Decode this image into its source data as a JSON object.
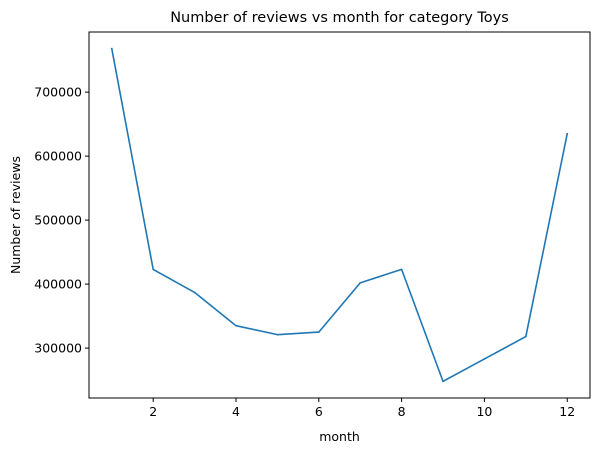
{
  "chart_data": {
    "type": "line",
    "title": "Number of reviews vs month for category Toys",
    "xlabel": "month",
    "ylabel": "Number of reviews",
    "x": [
      1,
      2,
      3,
      4,
      5,
      6,
      7,
      8,
      9,
      10,
      11,
      12
    ],
    "series": [
      {
        "color": "#1f77b4",
        "values": [
          768000,
          423000,
          387000,
          335000,
          321000,
          325000,
          402000,
          423000,
          248000,
          283000,
          318000,
          635000
        ]
      }
    ],
    "xlim": [
      0.45,
      12.55
    ],
    "ylim": [
      222000,
      794000
    ],
    "xticks": [
      2,
      4,
      6,
      8,
      10,
      12
    ],
    "xtick_labels": [
      "2",
      "4",
      "6",
      "8",
      "10",
      "12"
    ],
    "yticks": [
      300000,
      400000,
      500000,
      600000,
      700000
    ],
    "ytick_labels": [
      "300000",
      "400000",
      "500000",
      "600000",
      "700000"
    ],
    "grid": false,
    "legend": "none"
  }
}
